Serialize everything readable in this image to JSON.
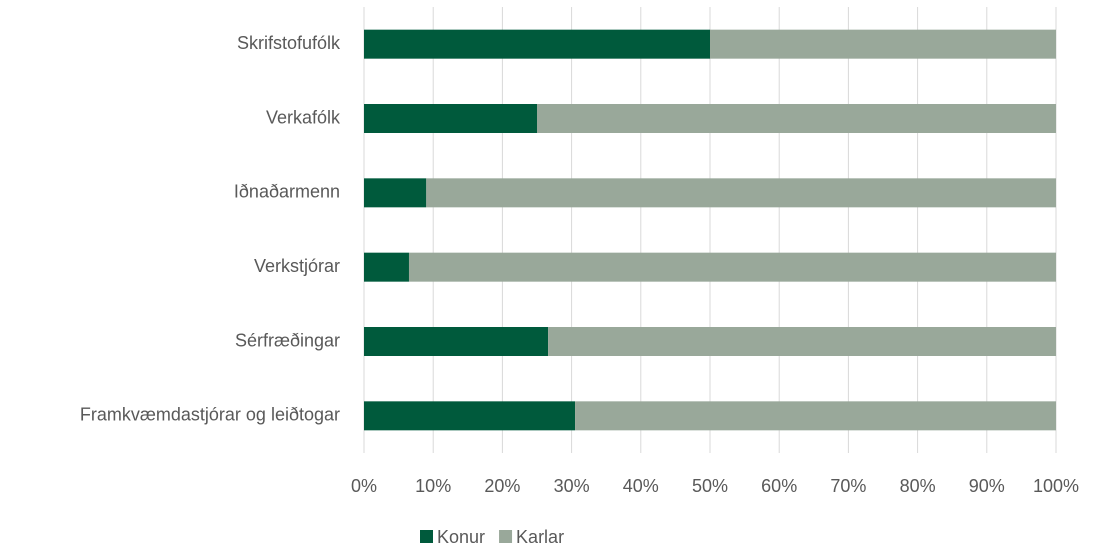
{
  "chart_data": {
    "type": "stacked_bar_horizontal",
    "categories": [
      "Skrifstofufólk",
      "Verkafólk",
      "Iðnaðarmenn",
      "Verkstjórar",
      "Sérfræðingar",
      "Framkvæmdastjórar og leiðtogar"
    ],
    "series": [
      {
        "name": "Konur",
        "color": "#005a3c",
        "values": [
          50,
          25,
          9,
          6.5,
          26.6,
          30.5
        ]
      },
      {
        "name": "Karlar",
        "color": "#99a89a",
        "values": [
          50,
          75,
          91,
          93.5,
          73.4,
          69.5
        ]
      }
    ],
    "xlim": [
      0,
      100
    ],
    "xticks": [
      {
        "value": 0,
        "label": "0%"
      },
      {
        "value": 10,
        "label": "10%"
      },
      {
        "value": 20,
        "label": "20%"
      },
      {
        "value": 30,
        "label": "30%"
      },
      {
        "value": 40,
        "label": "40%"
      },
      {
        "value": 50,
        "label": "50%"
      },
      {
        "value": 60,
        "label": "60%"
      },
      {
        "value": 70,
        "label": "70%"
      },
      {
        "value": 80,
        "label": "80%"
      },
      {
        "value": 90,
        "label": "90%"
      },
      {
        "value": 100,
        "label": "100%"
      }
    ],
    "grid": true,
    "legend": "bottom"
  }
}
